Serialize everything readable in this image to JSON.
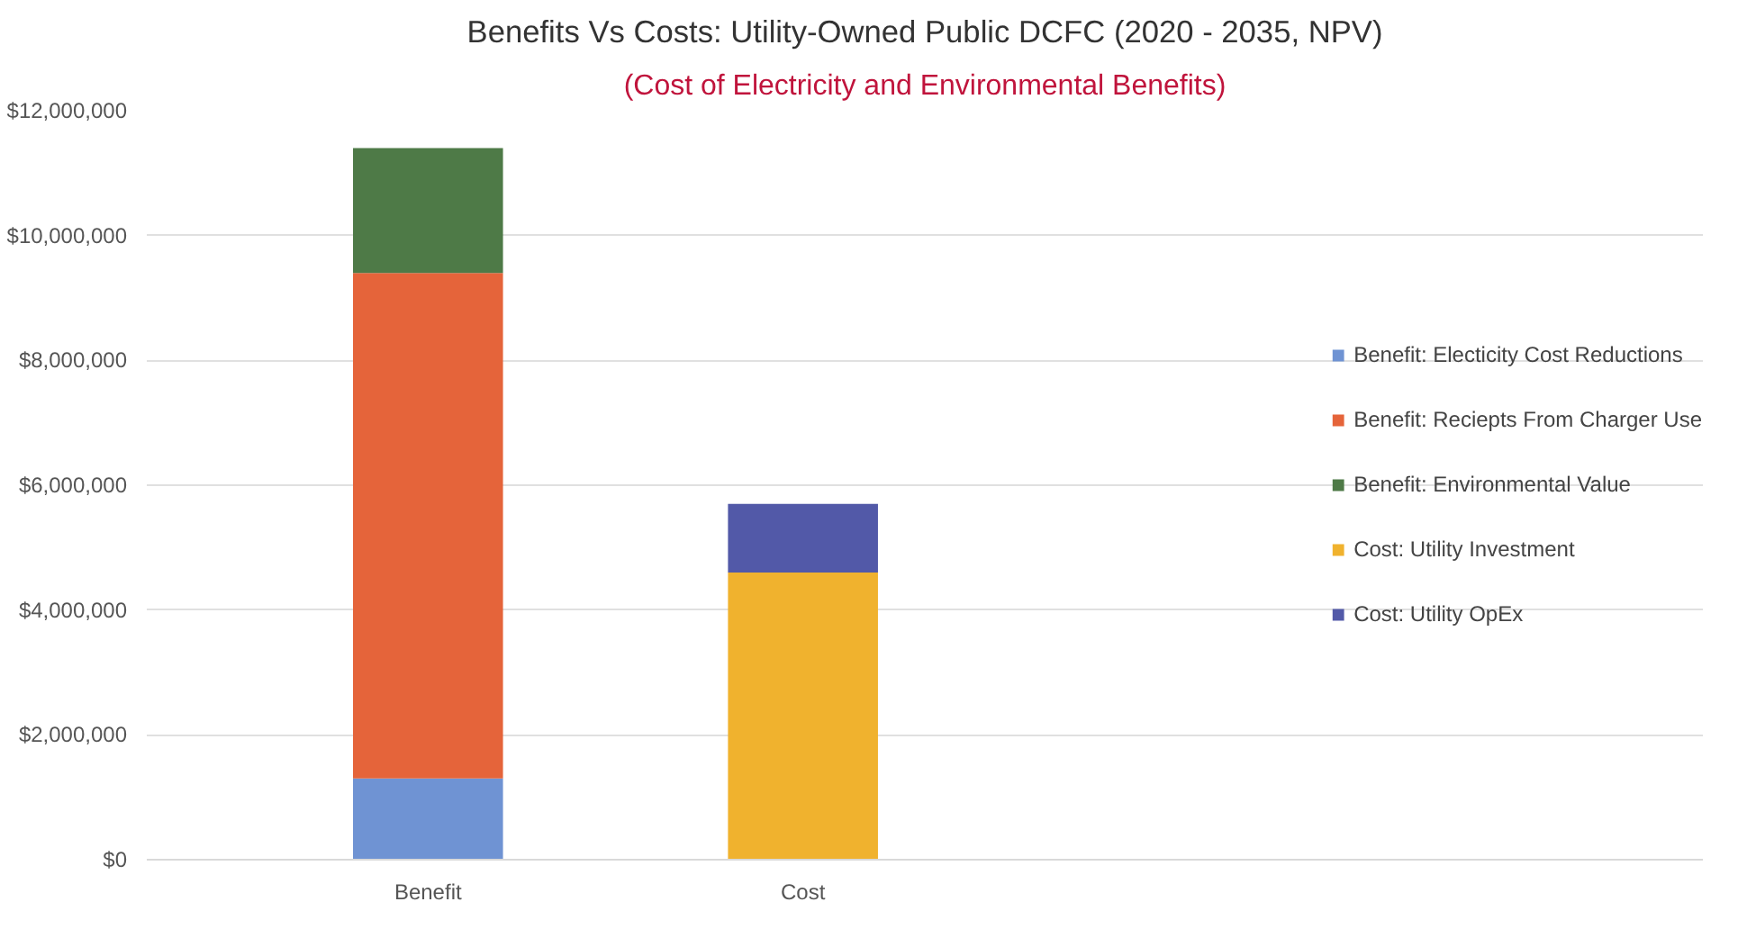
{
  "chart_data": {
    "type": "bar",
    "stacked": true,
    "title": "Benefits Vs Costs: Utility-Owned Public DCFC (2020 - 2035, NPV)",
    "subtitle": "(Cost of Electricity and Environmental Benefits)",
    "categories": [
      "Benefit",
      "Cost"
    ],
    "series": [
      {
        "name": "Benefit: Electicity Cost Reductions",
        "color": "#6f93d3",
        "values": [
          1300000,
          null
        ]
      },
      {
        "name": "Benefit: Reciepts From Charger Use",
        "color": "#e5643a",
        "values": [
          8100000,
          null
        ]
      },
      {
        "name": "Benefit: Environmental Value",
        "color": "#4e7a47",
        "values": [
          2000000,
          null
        ]
      },
      {
        "name": "Cost: Utility Investment",
        "color": "#f0b22e",
        "values": [
          null,
          4600000
        ]
      },
      {
        "name": "Cost: Utility OpEx",
        "color": "#5259a8",
        "values": [
          null,
          1100000
        ]
      }
    ],
    "ylim": [
      0,
      12000000
    ],
    "yticks": [
      {
        "value": 0,
        "label": "$0"
      },
      {
        "value": 2000000,
        "label": "$2,000,000"
      },
      {
        "value": 4000000,
        "label": "$4,000,000"
      },
      {
        "value": 6000000,
        "label": "$6,000,000"
      },
      {
        "value": 8000000,
        "label": "$8,000,000"
      },
      {
        "value": 10000000,
        "label": "$10,000,000"
      },
      {
        "value": 12000000,
        "label": "$12,000,000"
      }
    ],
    "grid": "y",
    "legend": "right"
  }
}
